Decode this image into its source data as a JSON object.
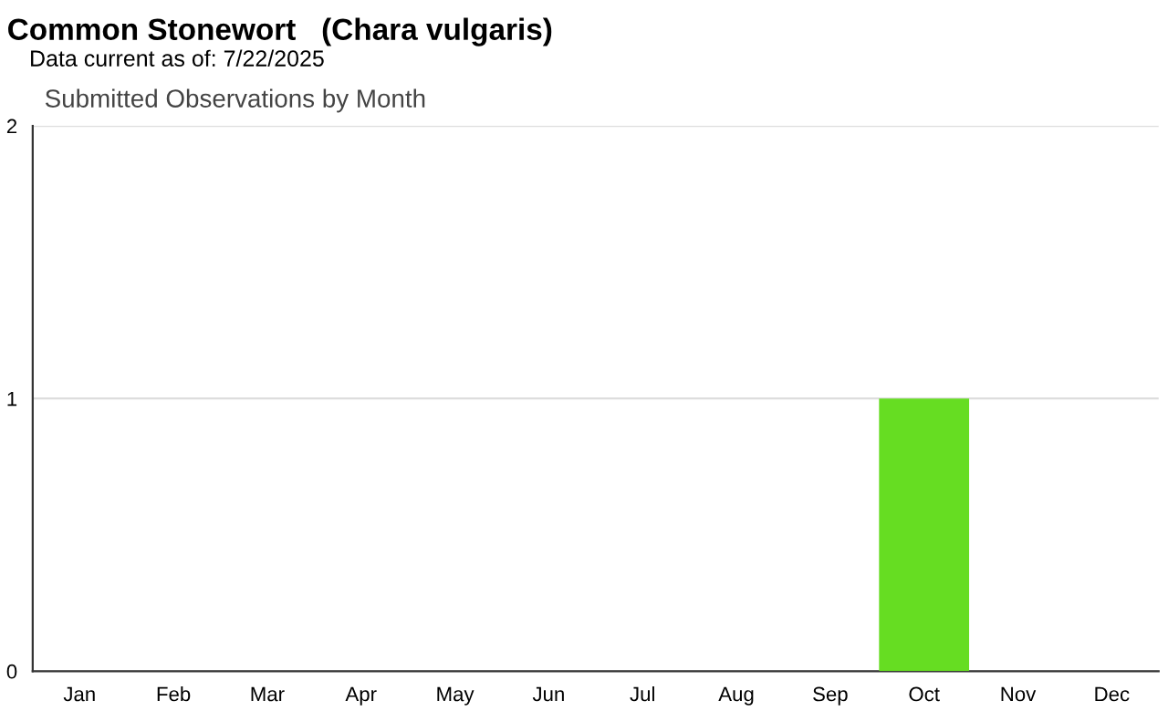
{
  "chart_data": {
    "type": "bar",
    "title": "Common Stonewort   (Chara vulgaris)",
    "subtitle": "Data current as of: 7/22/2025",
    "annotations": [
      "Submitted Observations by Month"
    ],
    "categories": [
      "Jan",
      "Feb",
      "Mar",
      "Apr",
      "May",
      "Jun",
      "Jul",
      "Aug",
      "Sep",
      "Oct",
      "Nov",
      "Dec"
    ],
    "values": [
      0,
      0,
      0,
      0,
      0,
      0,
      0,
      0,
      0,
      1,
      0,
      0
    ],
    "color": "#66dd22",
    "ylim": [
      0,
      2
    ],
    "yticks": [
      0,
      1,
      2
    ],
    "grid": "y",
    "legend": false
  }
}
